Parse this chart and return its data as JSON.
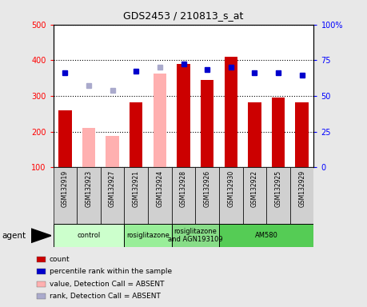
{
  "title": "GDS2453 / 210813_s_at",
  "samples": [
    "GSM132919",
    "GSM132923",
    "GSM132927",
    "GSM132921",
    "GSM132924",
    "GSM132928",
    "GSM132926",
    "GSM132930",
    "GSM132922",
    "GSM132925",
    "GSM132929"
  ],
  "bar_values": [
    260,
    null,
    null,
    282,
    null,
    390,
    345,
    410,
    282,
    295,
    282
  ],
  "bar_absent_values": [
    null,
    210,
    188,
    null,
    362,
    null,
    null,
    null,
    null,
    null,
    null
  ],
  "rank_values": [
    66.5,
    null,
    null,
    67.5,
    null,
    72.5,
    68.5,
    70.0,
    66.5,
    66.5,
    64.5
  ],
  "rank_absent_values": [
    null,
    57.5,
    54.0,
    null,
    70.0,
    null,
    null,
    null,
    null,
    null,
    null
  ],
  "bar_color": "#cc0000",
  "bar_absent_color": "#ffb0b0",
  "rank_color": "#0000cc",
  "rank_absent_color": "#aaaacc",
  "ylim_left": [
    100,
    500
  ],
  "ylim_right": [
    0,
    100
  ],
  "yticks_left": [
    100,
    200,
    300,
    400,
    500
  ],
  "ytick_labels_left": [
    "100",
    "200",
    "300",
    "400",
    "500"
  ],
  "yticks_right": [
    0,
    25,
    50,
    75,
    100
  ],
  "ytick_labels_right": [
    "0",
    "25",
    "50",
    "75",
    "100%"
  ],
  "groups": [
    {
      "label": "control",
      "start": 0,
      "end": 3,
      "color": "#ccffcc"
    },
    {
      "label": "rosiglitazone",
      "start": 3,
      "end": 5,
      "color": "#99ee99"
    },
    {
      "label": "rosiglitazone\nand AGN193109",
      "start": 5,
      "end": 7,
      "color": "#88dd88"
    },
    {
      "label": "AM580",
      "start": 7,
      "end": 11,
      "color": "#55cc55"
    }
  ],
  "legend_items": [
    {
      "label": "count",
      "color": "#cc0000"
    },
    {
      "label": "percentile rank within the sample",
      "color": "#0000cc"
    },
    {
      "label": "value, Detection Call = ABSENT",
      "color": "#ffb0b0"
    },
    {
      "label": "rank, Detection Call = ABSENT",
      "color": "#aaaacc"
    }
  ],
  "agent_label": "agent",
  "background_color": "#e8e8e8",
  "plot_bg_color": "#ffffff",
  "xtick_bg_color": "#d0d0d0"
}
